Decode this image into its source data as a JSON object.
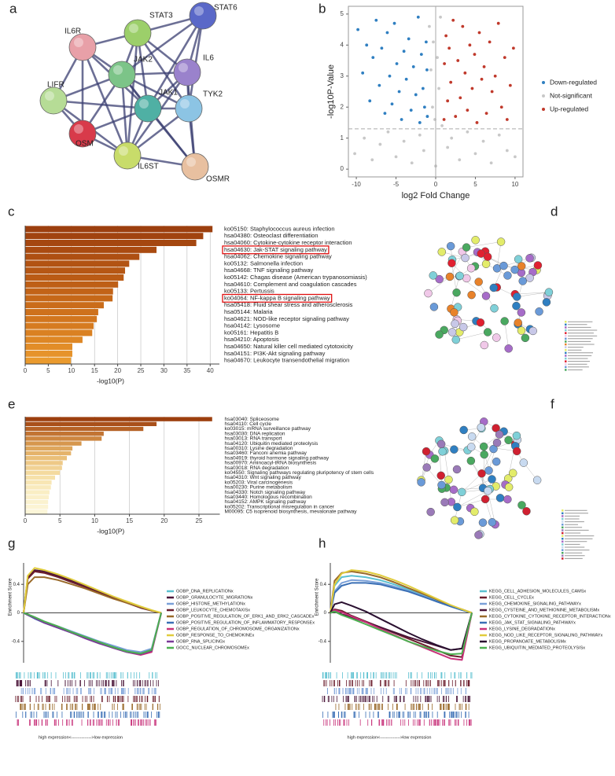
{
  "panel_labels": [
    "a",
    "b",
    "c",
    "d",
    "e",
    "f",
    "g",
    "h"
  ],
  "network": {
    "nodes": [
      "IL6R",
      "STAT3",
      "STAT6",
      "JAK2",
      "IL6",
      "LIFR",
      "JAK1",
      "TYK2",
      "OSM",
      "IL6ST",
      "OSMR"
    ]
  },
  "chart_data": [
    {
      "type": "scatter",
      "xlabel": "log2 Fold Change",
      "ylabel": "-log10P-Value",
      "xlim": [
        -11,
        11
      ],
      "ylim": [
        -0.25,
        5.25
      ],
      "xticks": [
        -10,
        -5,
        0,
        5,
        10
      ],
      "yticks": [
        0,
        1,
        2,
        3,
        4,
        5
      ],
      "hline": 1.3,
      "vline": 0,
      "legend": "right",
      "series": [
        {
          "name": "Down-regulated",
          "color": "#2f7fc1",
          "x": [
            -9.8,
            -9.2,
            -8.7,
            -8.3,
            -7.9,
            -7.5,
            -7.1,
            -6.8,
            -6.4,
            -6.1,
            -5.8,
            -5.5,
            -5.2,
            -4.9,
            -4.6,
            -4.3,
            -4.0,
            -3.7,
            -3.4,
            -3.1,
            -2.8,
            -2.5,
            -2.2,
            -2.0,
            -1.8,
            -1.6,
            -1.4,
            -1.2,
            -1.1,
            -1.05
          ],
          "values": [
            4.5,
            3.1,
            4.0,
            2.2,
            3.6,
            4.8,
            2.7,
            3.9,
            1.8,
            4.4,
            3.0,
            2.1,
            4.7,
            3.4,
            2.5,
            1.6,
            3.8,
            2.9,
            4.2,
            1.9,
            3.3,
            2.4,
            4.9,
            1.5,
            3.7,
            2.6,
            2.0,
            4.1,
            3.2,
            1.7
          ]
        },
        {
          "name": "Not-significant",
          "color": "#c8c8c8",
          "x": [
            -10.2,
            -9,
            -8,
            -7,
            -6,
            -5,
            -4,
            -3,
            -2,
            -1.5,
            -0.8,
            -0.6,
            -0.4,
            -0.3,
            -0.1,
            0,
            0.2,
            0.4,
            0.6,
            0.8,
            1.5,
            2,
            3,
            4,
            5,
            6,
            7,
            8,
            9,
            10
          ],
          "values": [
            0.5,
            1.0,
            0.3,
            0.8,
            1.2,
            0.4,
            0.9,
            0.2,
            1.1,
            0.6,
            4.6,
            3.2,
            2.0,
            4.1,
            1.6,
            0.1,
            3.6,
            2.6,
            4.9,
            1.4,
            0.7,
            1.0,
            0.3,
            1.2,
            0.5,
            0.9,
            0.2,
            1.1,
            0.6,
            0.4
          ]
        },
        {
          "name": "Up-regulated",
          "color": "#c0392b",
          "x": [
            1.05,
            1.1,
            1.3,
            1.5,
            1.7,
            1.9,
            2.2,
            2.5,
            2.8,
            3.1,
            3.4,
            3.7,
            4.0,
            4.3,
            4.6,
            4.9,
            5.2,
            5.5,
            5.8,
            6.1,
            6.4,
            6.8,
            7.1,
            7.5,
            7.9,
            8.3,
            8.7,
            9.0,
            9.4,
            9.8
          ],
          "values": [
            1.6,
            3.4,
            4.3,
            2.2,
            3.9,
            2.8,
            4.8,
            1.7,
            3.5,
            2.3,
            4.6,
            3.1,
            1.9,
            4.0,
            2.6,
            3.7,
            1.5,
            4.4,
            2.9,
            3.3,
            1.8,
            4.1,
            2.5,
            3.0,
            4.7,
            2.0,
            3.6,
            1.6,
            2.7,
            3.9
          ]
        }
      ]
    },
    {
      "type": "bar",
      "xlabel": "-log10(P)",
      "xlim": [
        0,
        42
      ],
      "xticks": [
        0,
        5,
        10,
        15,
        20,
        25,
        30,
        35,
        40
      ],
      "grid": true,
      "highlight": [
        3,
        10
      ],
      "categories": [
        "ko05150: Staphylococcus aureus infection",
        "hsa04380: Osteoclast differentiation",
        "hsa04060: Cytokine-cytokine receptor interaction",
        "hsa04630: Jak-STAT signaling pathway",
        "hsa04062: Chemokine signaling pathway",
        "ko05132: Salmonella infection",
        "hsa04668: TNF signaling pathway",
        "ko05142: Chagas disease (American trypanosomiasis)",
        "hsa04610: Complement and coagulation cascades",
        "ko05133: Pertussis",
        "ko04064: NF-kappa B signaling pathway",
        "hsa05418: Fluid shear stress and atherosclerosis",
        "hsa05144: Malaria",
        "hsa04621: NOD-like receptor signaling pathway",
        "hsa04142: Lysosome",
        "ko05161: Hepatitis B",
        "hsa04210: Apoptosis",
        "hsa04650: Natural killer cell mediated cytotoxicity",
        "hsa04151: PI3K-Akt signaling pathway",
        "hsa04670: Leukocyte transendothelial migration"
      ],
      "values": [
        40.5,
        38.5,
        37,
        28.4,
        24.7,
        22.5,
        21.6,
        21.3,
        20.1,
        19,
        18.9,
        17,
        15.8,
        15.5,
        14.8,
        14.5,
        12.4,
        10.2,
        10.2,
        9.9
      ],
      "colors": [
        "#9c3f0e",
        "#a1430f",
        "#a54710",
        "#aa4b11",
        "#ae4f12",
        "#b25313",
        "#b65714",
        "#ba5b15",
        "#be5f16",
        "#c26317",
        "#c66818",
        "#ca6c1a",
        "#ce711c",
        "#d2761e",
        "#d67b20",
        "#da8122",
        "#de8725",
        "#e28d28",
        "#e6932b",
        "#ea9a2e"
      ]
    },
    {
      "type": "bar",
      "xlabel": "-log10(P)",
      "xlim": [
        0,
        28
      ],
      "xticks": [
        0,
        5,
        10,
        15,
        20,
        25
      ],
      "grid": true,
      "categories": [
        "hsa03040: Spliceosome",
        "hsa04110: Cell cycle",
        "ko03015: mRNA surveillance pathway",
        "hsa03030: DNA replication",
        "hsa03013: RNA transport",
        "hsa04120: Ubiquitin mediated proteolysis",
        "hsa00310: Lysine degradation",
        "hsa03460: Fanconi anemia pathway",
        "hsa04919: thyroid hormone signaling pathway",
        "hsa00970: Aminoacyl-tRNA biosynthesis",
        "hsa03018: RNA degradation",
        "ko04550: Signaling pathways regulating pluripotency of stem cells",
        "hsa04310: Wnt signaling pathway",
        "ko05203: Viral carcinogenesis",
        "hsa00230: Purine metabolism",
        "hsa04330: Notch signaling pathway",
        "hsa03440: Homologous recombination",
        "hsa04152: AMPK signaling pathway",
        "ko05202: Transcriptional misregulation in cancer",
        "M00095: C5 isoprenoid biosynthesis, mevalonate pathway"
      ],
      "values": [
        26.9,
        18.9,
        17,
        11.3,
        11,
        8.1,
        6.8,
        6.6,
        6,
        5.4,
        5.3,
        5,
        4.3,
        3.8,
        3.7,
        3.5,
        3.4,
        3.3,
        3.3,
        3.2
      ],
      "colors": [
        "#9c3f0e",
        "#a9501a",
        "#b66226",
        "#c27433",
        "#cd8640",
        "#d6974e",
        "#dea65d",
        "#e5b36b",
        "#eabf79",
        "#eec987",
        "#f1d294",
        "#f4da9f",
        "#f6e1aa",
        "#f8e6b4",
        "#f9eabd",
        "#faeec4",
        "#fbf0ca",
        "#fbf2cf",
        "#fcf4d4",
        "#fcf6d8"
      ]
    },
    {
      "type": "line",
      "ylabel": "Enrichment Score",
      "footer": "high expression<-------------->low expression",
      "xlim": [
        0,
        1
      ],
      "ylim": [
        -0.7,
        0.7
      ],
      "yticks": [
        0.4,
        0,
        -0.4
      ],
      "x": [
        0,
        0.03,
        0.08,
        0.15,
        0.25,
        0.35,
        0.45,
        0.55,
        0.65,
        0.75,
        0.85,
        0.93,
        1
      ],
      "series": [
        {
          "name": "GOBP_DNA_REPLICATIONx",
          "color": "#5bc0d0",
          "values": [
            0,
            -0.03,
            -0.07,
            -0.13,
            -0.2,
            -0.27,
            -0.34,
            -0.41,
            -0.47,
            -0.53,
            -0.56,
            -0.52,
            0
          ]
        },
        {
          "name": "GOBP_GRANULOCYTE_MIGRATIONx",
          "color": "#4a1538",
          "values": [
            0,
            0.5,
            0.6,
            0.58,
            0.52,
            0.45,
            0.37,
            0.29,
            0.22,
            0.15,
            0.08,
            0.03,
            0
          ]
        },
        {
          "name": "GOBP_HISTONE_METHYLATIONx",
          "color": "#7aa0d8",
          "values": [
            0,
            -0.02,
            -0.06,
            -0.12,
            -0.19,
            -0.26,
            -0.33,
            -0.4,
            -0.46,
            -0.52,
            -0.55,
            -0.5,
            0
          ]
        },
        {
          "name": "GOBP_LEUKOCYTE_CHEMOTAXISx",
          "color": "#6b1d2c",
          "values": [
            0,
            0.48,
            0.58,
            0.56,
            0.5,
            0.43,
            0.36,
            0.28,
            0.21,
            0.14,
            0.07,
            0.03,
            0
          ]
        },
        {
          "name": "GOBP_POSITIVE_REGULATION_OF_ERK1_AND_ERK2_CASCADEx",
          "color": "#9a6a2a",
          "values": [
            0,
            0.4,
            0.5,
            0.5,
            0.46,
            0.4,
            0.34,
            0.27,
            0.2,
            0.14,
            0.08,
            0.03,
            0
          ]
        },
        {
          "name": "GOBP_POSITIVE_REGULATION_OF_INFLAMMATORY_RESPONSEx",
          "color": "#3a6fb5",
          "values": [
            0,
            -0.03,
            -0.08,
            -0.14,
            -0.21,
            -0.28,
            -0.35,
            -0.42,
            -0.48,
            -0.54,
            -0.58,
            -0.54,
            0
          ]
        },
        {
          "name": "GOBP_REGULATION_OF_CHROMOSOME_ORGANIZATIONx",
          "color": "#c8327a",
          "values": [
            0,
            -0.02,
            -0.07,
            -0.13,
            -0.2,
            -0.28,
            -0.35,
            -0.42,
            -0.49,
            -0.55,
            -0.59,
            -0.55,
            0
          ]
        },
        {
          "name": "GOBP_RESPONSE_TO_CHEMOKINEx",
          "color": "#e0cc3c",
          "values": [
            0,
            0.52,
            0.63,
            0.6,
            0.54,
            0.47,
            0.39,
            0.31,
            0.23,
            0.16,
            0.09,
            0.04,
            0
          ]
        },
        {
          "name": "GOBP_RNA_SPLICINGx",
          "color": "#7a3a98",
          "values": [
            0,
            -0.03,
            -0.07,
            -0.14,
            -0.21,
            -0.28,
            -0.36,
            -0.43,
            -0.49,
            -0.55,
            -0.58,
            -0.53,
            0
          ]
        },
        {
          "name": "GOCC_NUCLEAR_CHROMOSOMEx",
          "color": "#4caf50",
          "values": [
            0,
            -0.02,
            -0.06,
            -0.12,
            -0.19,
            -0.27,
            -0.34,
            -0.41,
            -0.48,
            -0.54,
            -0.57,
            -0.52,
            0
          ]
        }
      ]
    },
    {
      "type": "line",
      "ylabel": "Enrichment Score",
      "footer": "high expression<-------------->low expression",
      "xlim": [
        0,
        1
      ],
      "ylim": [
        -0.7,
        0.7
      ],
      "yticks": [
        0.4,
        0,
        -0.4
      ],
      "x": [
        0,
        0.03,
        0.08,
        0.15,
        0.25,
        0.35,
        0.45,
        0.55,
        0.65,
        0.75,
        0.85,
        0.93,
        1
      ],
      "series": [
        {
          "name": "KEGG_CELL_ADHESION_MOLECULES_CAMSx",
          "color": "#5bc0d0",
          "values": [
            0,
            0.38,
            0.5,
            0.52,
            0.5,
            0.46,
            0.4,
            0.33,
            0.25,
            0.17,
            0.09,
            0.04,
            0
          ]
        },
        {
          "name": "KEGG_CELL_CYCLEx",
          "color": "#6b1d2c",
          "values": [
            0,
            0.05,
            0.03,
            -0.04,
            -0.12,
            -0.2,
            -0.28,
            -0.36,
            -0.44,
            -0.52,
            -0.6,
            -0.62,
            0
          ]
        },
        {
          "name": "KEGG_CHEMOKINE_SIGNALING_PATHWAYx",
          "color": "#7aa0d8",
          "values": [
            0,
            0.3,
            0.42,
            0.46,
            0.45,
            0.42,
            0.37,
            0.31,
            0.24,
            0.16,
            0.09,
            0.04,
            0
          ]
        },
        {
          "name": "KEGG_CYSTEINE_AND_METHIONINE_METABOLISMx",
          "color": "#4a1538",
          "values": [
            0,
            0.02,
            -0.02,
            -0.06,
            -0.13,
            -0.2,
            -0.27,
            -0.34,
            -0.4,
            -0.46,
            -0.52,
            -0.5,
            0
          ]
        },
        {
          "name": "KEGG_CYTOKINE_CYTOKINE_RECEPTOR_INTERACTIONx",
          "color": "#9a6a2a",
          "values": [
            0,
            0.45,
            0.56,
            0.58,
            0.55,
            0.5,
            0.43,
            0.35,
            0.27,
            0.19,
            0.1,
            0.05,
            0
          ]
        },
        {
          "name": "KEGG_JAK_STAT_SIGNALING_PATHWAYx",
          "color": "#3a6fb5",
          "values": [
            0,
            0.28,
            0.38,
            0.42,
            0.42,
            0.4,
            0.35,
            0.3,
            0.23,
            0.16,
            0.09,
            0.04,
            0
          ]
        },
        {
          "name": "KEGG_LYSINE_DEGRADATIONx",
          "color": "#c8327a",
          "values": [
            0,
            0.04,
            0.01,
            -0.05,
            -0.13,
            -0.22,
            -0.31,
            -0.4,
            -0.48,
            -0.56,
            -0.64,
            -0.66,
            0
          ]
        },
        {
          "name": "KEGG_NOD_LIKE_RECEPTOR_SIGNALING_PATHWAYx",
          "color": "#e0cc3c",
          "values": [
            0,
            0.4,
            0.55,
            0.6,
            0.58,
            0.53,
            0.46,
            0.38,
            0.29,
            0.2,
            0.11,
            0.05,
            0
          ]
        },
        {
          "name": "KEGG_PROPANOATE_METABOLISMx",
          "color": "#2a1030",
          "values": [
            0,
            0.12,
            0.15,
            0.1,
            0.02,
            -0.08,
            -0.18,
            -0.28,
            -0.37,
            -0.45,
            -0.52,
            -0.5,
            0
          ]
        },
        {
          "name": "KEGG_UBIQUITIN_MEDIATED_PROTEOLYSISx",
          "color": "#4caf50",
          "values": [
            0,
            0.02,
            -0.03,
            -0.08,
            -0.16,
            -0.24,
            -0.32,
            -0.4,
            -0.47,
            -0.53,
            -0.58,
            -0.57,
            0
          ]
        }
      ]
    }
  ]
}
